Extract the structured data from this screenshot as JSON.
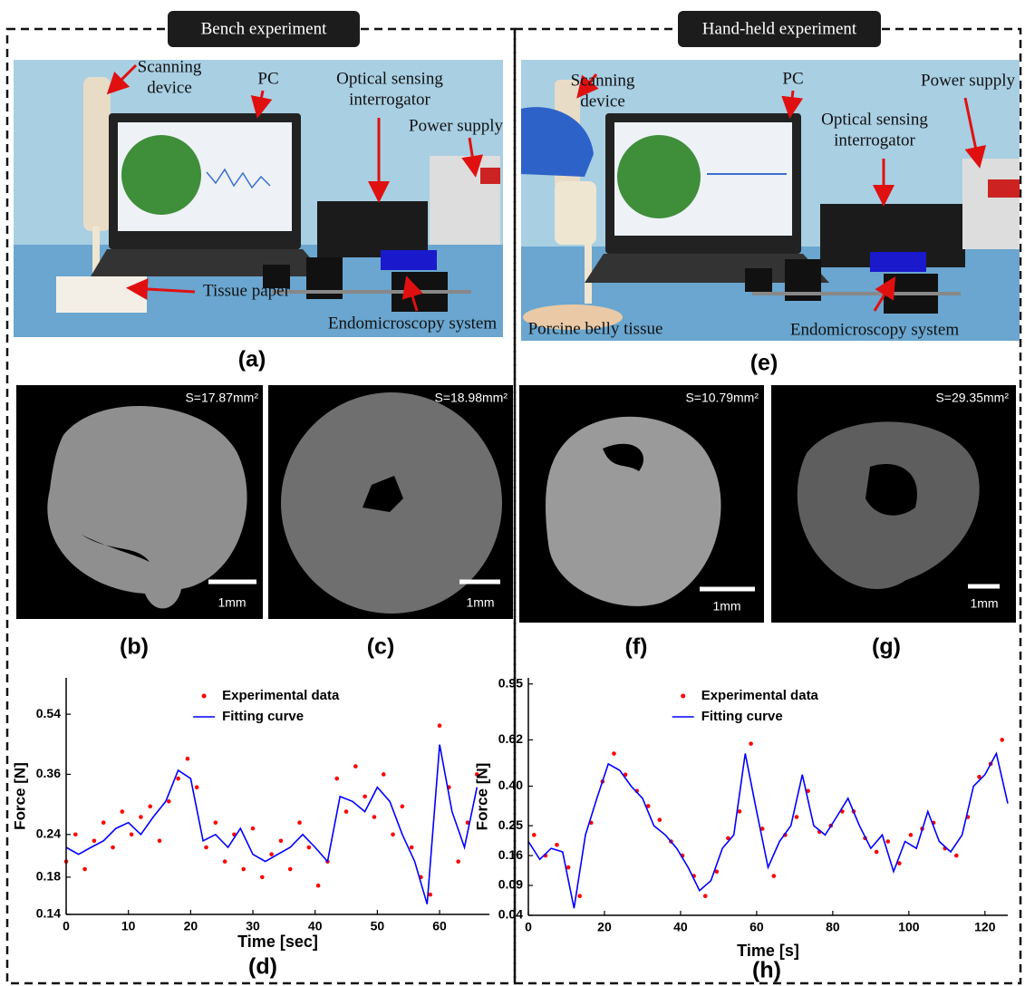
{
  "panels": [
    {
      "title": "Bench experiment",
      "photo": {
        "label": "(a)",
        "annotations": [
          {
            "lines": [
              "Scanning",
              "device"
            ]
          },
          {
            "lines": [
              "PC"
            ]
          },
          {
            "lines": [
              "Optical sensing",
              "interrogator"
            ]
          },
          {
            "lines": [
              "Power supply"
            ]
          },
          {
            "lines": [
              "Tissue paper"
            ]
          },
          {
            "lines": [
              "Endomicroscopy system"
            ]
          }
        ]
      },
      "mosaics": [
        {
          "label": "(b)",
          "area": "S=17.87mm²",
          "scale": "1mm"
        },
        {
          "label": "(c)",
          "area": "S=18.98mm²",
          "scale": "1mm"
        }
      ]
    },
    {
      "title": "Hand-held experiment",
      "photo": {
        "label": "(e)",
        "annotations": [
          {
            "lines": [
              "Scanning",
              "device"
            ]
          },
          {
            "lines": [
              "PC"
            ]
          },
          {
            "lines": [
              "Power supply"
            ]
          },
          {
            "lines": [
              "Optical sensing",
              "interrogator"
            ]
          },
          {
            "lines": [
              "Porcine belly tissue"
            ]
          },
          {
            "lines": [
              "Endomicroscopy system"
            ]
          }
        ]
      },
      "mosaics": [
        {
          "label": "(f)",
          "area": "S=10.79mm²",
          "scale": "1mm"
        },
        {
          "label": "(g)",
          "area": "S=29.35mm²",
          "scale": "1mm"
        }
      ]
    }
  ],
  "chart_data": [
    {
      "type": "scatter",
      "label": "(d)",
      "x_label": "Time [sec]",
      "y_label": "Force [N]",
      "xlim": [
        0,
        68
      ],
      "xticks": [
        0,
        10,
        20,
        30,
        40,
        50,
        60
      ],
      "ylim": [
        0.14,
        0.69
      ],
      "yscale": "log",
      "yticks": [
        0.14,
        0.18,
        0.24,
        0.36,
        0.54
      ],
      "legend": "upper center",
      "series": [
        {
          "name": "Experimental data",
          "color": "#ff0000",
          "kind": "points",
          "x": [
            0,
            1.5,
            3,
            4.5,
            6,
            7.5,
            9,
            10.5,
            12,
            13.5,
            15,
            16.5,
            18,
            19.5,
            21,
            22.5,
            24,
            25.5,
            27,
            28.5,
            30,
            31.5,
            33,
            34.5,
            36,
            37.5,
            39,
            40.5,
            42,
            43.5,
            45,
            46.5,
            48,
            49.5,
            51,
            52.5,
            54,
            55.5,
            57,
            58.5,
            60,
            61.5,
            63,
            64.5,
            66
          ],
          "values": [
            0.2,
            0.24,
            0.19,
            0.23,
            0.26,
            0.22,
            0.28,
            0.24,
            0.27,
            0.29,
            0.23,
            0.3,
            0.35,
            0.4,
            0.33,
            0.22,
            0.26,
            0.2,
            0.24,
            0.19,
            0.25,
            0.18,
            0.21,
            0.23,
            0.19,
            0.26,
            0.22,
            0.17,
            0.2,
            0.35,
            0.28,
            0.38,
            0.31,
            0.27,
            0.36,
            0.24,
            0.29,
            0.22,
            0.18,
            0.16,
            0.5,
            0.33,
            0.2,
            0.26,
            0.36
          ]
        },
        {
          "name": "Fitting curve",
          "color": "#0000ff",
          "kind": "line",
          "x": [
            0,
            2,
            4,
            6,
            8,
            10,
            12,
            14,
            16,
            18,
            20,
            22,
            24,
            26,
            28,
            30,
            32,
            34,
            36,
            38,
            40,
            42,
            44,
            46,
            48,
            50,
            52,
            54,
            56,
            58,
            60,
            62,
            64,
            66
          ],
          "values": [
            0.22,
            0.21,
            0.22,
            0.23,
            0.25,
            0.26,
            0.24,
            0.27,
            0.3,
            0.37,
            0.35,
            0.23,
            0.24,
            0.22,
            0.25,
            0.21,
            0.2,
            0.21,
            0.22,
            0.24,
            0.22,
            0.2,
            0.31,
            0.3,
            0.28,
            0.33,
            0.3,
            0.24,
            0.2,
            0.15,
            0.44,
            0.28,
            0.22,
            0.33
          ]
        }
      ]
    },
    {
      "type": "scatter",
      "label": "(h)",
      "x_label": "Time [s]",
      "y_label": "Force [N]",
      "xlim": [
        0,
        126
      ],
      "xticks": [
        0,
        20,
        40,
        60,
        80,
        100,
        120
      ],
      "ylim": [
        0.04,
        0.99
      ],
      "yscale": "sqrt",
      "yticks": [
        0.04,
        0.09,
        0.16,
        0.25,
        {
          "value": 0.4,
          "label": "0.40"
        },
        0.62,
        0.95
      ],
      "legend": "upper center",
      "series": [
        {
          "name": "Experimental data",
          "color": "#ff0000",
          "kind": "points",
          "x": [
            1.5,
            4.5,
            7.5,
            10.5,
            13.5,
            16.5,
            19.5,
            22.5,
            25.5,
            28.5,
            31.5,
            34.5,
            37.5,
            40.5,
            43.5,
            46.5,
            49.5,
            52.5,
            55.5,
            58.5,
            61.5,
            64.5,
            67.5,
            70.5,
            73.5,
            76.5,
            79.5,
            82.5,
            85.5,
            88.5,
            91.5,
            94.5,
            97.5,
            100.5,
            103.5,
            106.5,
            109.5,
            112.5,
            115.5,
            118.5,
            121.5,
            124.5
          ],
          "values": [
            0.22,
            0.16,
            0.19,
            0.13,
            0.07,
            0.26,
            0.42,
            0.55,
            0.45,
            0.38,
            0.32,
            0.27,
            0.2,
            0.16,
            0.11,
            0.07,
            0.12,
            0.21,
            0.3,
            0.6,
            0.24,
            0.11,
            0.22,
            0.28,
            0.38,
            0.23,
            0.25,
            0.3,
            0.3,
            0.21,
            0.17,
            0.2,
            0.14,
            0.22,
            0.24,
            0.26,
            0.18,
            0.16,
            0.28,
            0.44,
            0.5,
            0.62
          ]
        },
        {
          "name": "Fitting curve",
          "color": "#0000ff",
          "kind": "line",
          "x": [
            0,
            3,
            6,
            9,
            12,
            15,
            18,
            21,
            24,
            27,
            30,
            33,
            36,
            39,
            42,
            45,
            48,
            51,
            54,
            57,
            60,
            63,
            66,
            69,
            72,
            75,
            78,
            81,
            84,
            87,
            90,
            93,
            96,
            99,
            102,
            105,
            108,
            111,
            114,
            117,
            120,
            123,
            126
          ],
          "values": [
            0.2,
            0.15,
            0.18,
            0.17,
            0.05,
            0.22,
            0.35,
            0.5,
            0.47,
            0.4,
            0.35,
            0.25,
            0.22,
            0.18,
            0.13,
            0.08,
            0.1,
            0.18,
            0.22,
            0.55,
            0.3,
            0.13,
            0.2,
            0.25,
            0.45,
            0.25,
            0.22,
            0.28,
            0.35,
            0.25,
            0.18,
            0.22,
            0.12,
            0.2,
            0.18,
            0.3,
            0.2,
            0.17,
            0.22,
            0.4,
            0.45,
            0.55,
            0.33
          ]
        }
      ]
    }
  ]
}
